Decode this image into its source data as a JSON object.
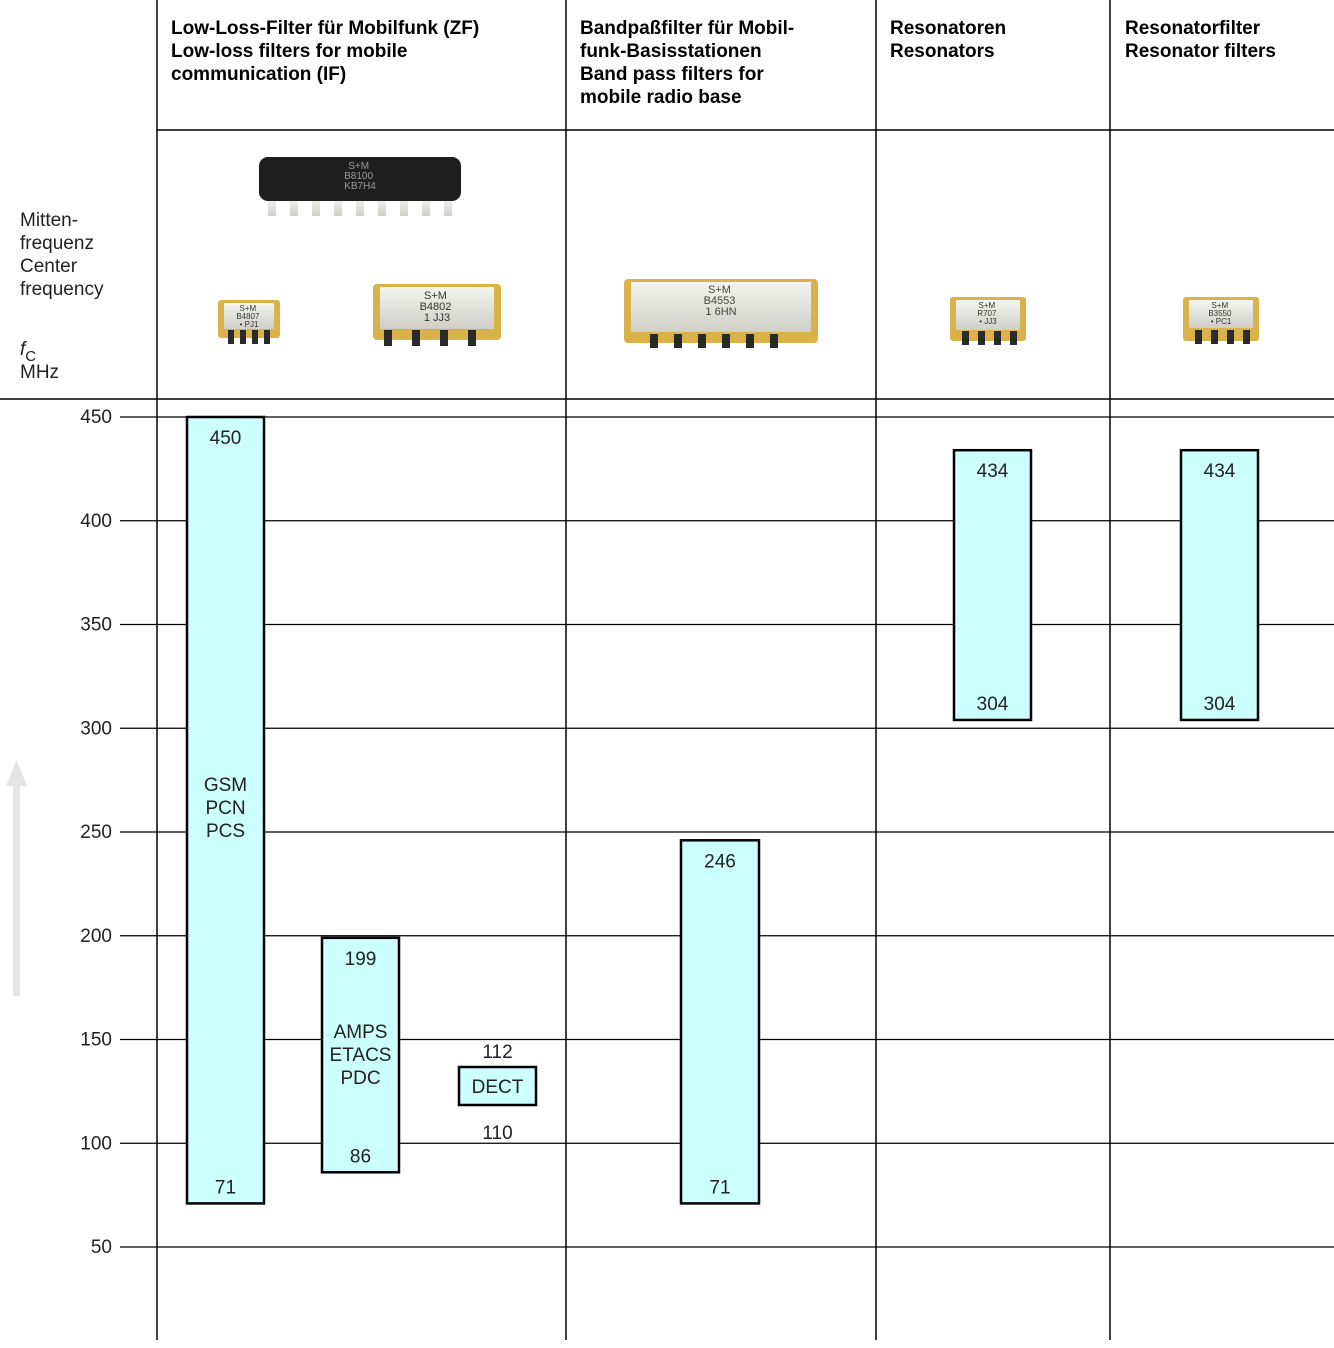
{
  "header": {
    "columns": [
      {
        "lines": [
          "Low-Loss-Filter für Mobilfunk (ZF)",
          "Low-loss filters for mobile",
          "communication (IF)"
        ]
      },
      {
        "lines": [
          "Bandpaßfilter  für Mobil-",
          "funk-Basisstationen",
          "Band pass filters for",
          "mobile radio base"
        ]
      },
      {
        "lines": [
          "Resonatoren",
          "Resonators"
        ]
      },
      {
        "lines": [
          "Resonatorfilter",
          "Resonator filters"
        ]
      }
    ]
  },
  "side_label": {
    "lines": [
      "Mitten-",
      "frequenz",
      "Center",
      "frequency"
    ],
    "symbol": "f",
    "symbol_sub": "C",
    "unit": "MHz"
  },
  "components": [
    {
      "name": "chip-large",
      "text": [
        "S+M",
        "B8100",
        "KB7H4"
      ]
    },
    {
      "name": "chip-small-1",
      "text": [
        "S+M",
        "B4807",
        "• PJ1"
      ]
    },
    {
      "name": "chip-small-2",
      "text": [
        "S+M",
        "B4802",
        "1     JJ3"
      ]
    },
    {
      "name": "chip-base",
      "text": [
        "S+M",
        "B4553",
        "1         6HN"
      ]
    },
    {
      "name": "chip-resonator",
      "text": [
        "S+M",
        "R707",
        "• JJ3"
      ]
    },
    {
      "name": "chip-resonator-filter",
      "text": [
        "S+M",
        "B3550",
        "• PC1"
      ]
    }
  ],
  "chart_data": {
    "type": "bar",
    "ylabel": "fC MHz",
    "ylim": [
      0,
      460
    ],
    "yticks": [
      50,
      100,
      150,
      200,
      250,
      300,
      350,
      400,
      450
    ],
    "grid": true,
    "ranges": [
      {
        "column": "Low-Loss-Filter für Mobilfunk (ZF) / Low-loss filters for mobile communication (IF)",
        "low": 71,
        "high": 450,
        "labels": [
          "GSM",
          "PCN",
          "PCS"
        ],
        "boxed": true
      },
      {
        "column": "Low-Loss-Filter für Mobilfunk (ZF) / Low-loss filters for mobile communication (IF)",
        "low": 86,
        "high": 199,
        "labels": [
          "AMPS",
          "ETACS",
          "PDC"
        ],
        "boxed": true
      },
      {
        "column": "Low-Loss-Filter für Mobilfunk (ZF) / Low-loss filters for mobile communication (IF)",
        "low": 110,
        "high": 112,
        "labels": [
          "DECT"
        ],
        "boxed": false
      },
      {
        "column": "Bandpaßfilter für Mobilfunk-Basisstationen / Band pass filters for mobile radio base",
        "low": 71,
        "high": 246,
        "labels": [],
        "boxed": true
      },
      {
        "column": "Resonatoren / Resonators",
        "low": 304,
        "high": 434,
        "labels": [],
        "boxed": true
      },
      {
        "column": "Resonatorfilter / Resonator filters",
        "low": 304,
        "high": 434,
        "labels": [],
        "boxed": true
      }
    ]
  },
  "colors": {
    "bar_fill": "#ccffff",
    "bar_stroke": "#000000",
    "grid": "#000000",
    "arrow": "#e5e5e5",
    "chip_body": "#1e1e1e",
    "chip_pin": "#c9a037",
    "chip_frame": "#c9a037"
  }
}
